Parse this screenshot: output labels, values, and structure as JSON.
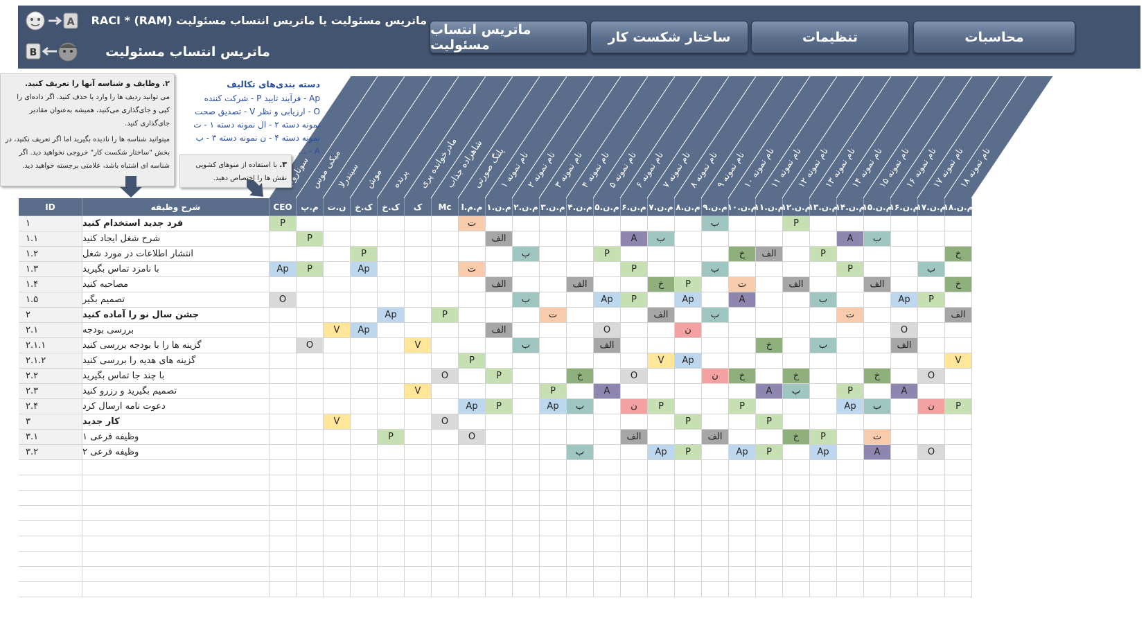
{
  "header": {
    "title_main": "ماتریس مسئولیت یا ماتریس انتساب مسئولیت RACI * (RAM)",
    "title_sub": "ماتریس انتساب مسئولیت",
    "icon_a_label": "A",
    "icon_b_label": "B",
    "nav": [
      {
        "label": "محاسبات"
      },
      {
        "label": "تنظیمات"
      },
      {
        "label": "ساختار شکست کار"
      },
      {
        "label": "ماتریس انتساب مسئولیت"
      }
    ]
  },
  "note1": {
    "heading_num": "۲.",
    "heading": "وظایف و شناسه آنها را تعریف کنید.",
    "p1": "می توانید ردیف ها را وارد یا حذف کنید. اگر داده‌ای را کپی و جای‌گذاری می‌کنید، همیشه به‌عنوان مقادیر جای‌گذاری کنید.",
    "p2": "میتوانید شناسه ها را نادیده بگیرید اما اگر تعریف نکنید، در بخش \"ساختار شکست کار\" خروجی نخواهید دید. اگر شناسه ای اشتباه باشد، علامتی برجسته خواهید دید."
  },
  "note2": {
    "heading_num": "۳.",
    "text": "با استفاده از منوهای کشویی نقش ها را اختصاص دهید."
  },
  "legend": {
    "title": "دسته بندی‌های تکالیف",
    "rows": [
      "Ap - فرآیند تایید    P - شرکت کننده",
      "O - ارزیابی و نظر   V - تصدیق صحت",
      "نمونه دسته ۲ - ال  نمونه دسته ۱ - ت",
      "نمونه دسته ۴ - ن  نمونه دسته ۳ - ب",
      "A - ..."
    ]
  },
  "roles_full": [
    "سوناروپ",
    "میکی موس",
    "سیندرلا",
    "موش",
    "پرنده",
    "مادرخوانده پری",
    "شاهزاده جذاب",
    "پلنگ صورتی",
    "نام نمونه ۱",
    "نام نمونه ۲",
    "نام نمونه ۳",
    "نام نمونه ۴",
    "نام نمونه ۵",
    "نام نمونه ۶",
    "نام نمونه ۷",
    "نام نمونه ۸",
    "نام نمونه ۹",
    "نام نمونه ۱۰",
    "نام نمونه ۱۱",
    "نام نمونه ۱۲",
    "نام نمونه ۱۳",
    "نام نمونه ۱۴",
    "نام نمونه ۱۵",
    "نام نمونه ۱۶",
    "نام نمونه ۱۷",
    "نام نمونه ۱۸"
  ],
  "table": {
    "id_header": "ID",
    "task_header": "شرح وظیفه",
    "role_abbr": [
      "CEO",
      "م.پ",
      "ن.ت",
      "ک.خ",
      "ک.خ",
      "ک",
      "Mc",
      "م.م.ا",
      "م.ن.۱",
      "م.ن.۲",
      "م.ن.۳",
      "م.ن.۴",
      "م.ن.۵",
      "م.ن.۶",
      "م.ن.۷",
      "م.ن.۸",
      "م.ن.۹",
      "م.ن.۱۰",
      "م.ن.۱۱",
      "م.ن.۱۲",
      "م.ن.۱۳",
      "م.ن.۱۴",
      "م.ن.۱۵",
      "م.ن.۱۶",
      "م.ن.۱۷",
      "م.ن.۱۸"
    ],
    "rows": [
      {
        "id": "۱",
        "task": "فرد جدید استخدام کنید",
        "bold": true,
        "cells": {
          "0": "P",
          "7": "ت",
          "16": "ب",
          "19": "P"
        }
      },
      {
        "id": "۱.۱",
        "task": "شرح شغل ایجاد کنید",
        "bold": false,
        "cells": {
          "1": "P",
          "8": "الف",
          "13": "A",
          "14": "ب",
          "21": "A",
          "22": "ب"
        }
      },
      {
        "id": "۱.۲",
        "task": "انتشار اطلاعات در مورد شغل",
        "bold": false,
        "cells": {
          "3": "P",
          "9": "ب",
          "12": "P",
          "17": "خ",
          "18": "الف",
          "20": "P",
          "25": "خ"
        }
      },
      {
        "id": "۱.۳",
        "task": "با نامزد تماس بگیرید",
        "bold": false,
        "cells": {
          "0": "Ap",
          "1": "P",
          "3": "Ap",
          "7": "ت",
          "13": "P",
          "16": "ب",
          "21": "P",
          "24": "ب"
        }
      },
      {
        "id": "۱.۴",
        "task": "مصاحبه کنید",
        "bold": false,
        "cells": {
          "8": "الف",
          "11": "الف",
          "14": "خ",
          "15": "P",
          "17": "ت",
          "19": "الف",
          "22": "الف",
          "25": "خ"
        }
      },
      {
        "id": "۱.۵",
        "task": "تصمیم بگیر",
        "bold": false,
        "cells": {
          "0": "O",
          "9": "ب",
          "12": "Ap",
          "13": "P",
          "15": "Ap",
          "17": "A",
          "20": "ب",
          "23": "Ap",
          "24": "P"
        }
      },
      {
        "id": "۲",
        "task": "جشن سال نو را آماده کنید",
        "bold": true,
        "cells": {
          "4": "Ap",
          "6": "P",
          "10": "ت",
          "14": "الف",
          "16": "ب",
          "21": "ت",
          "25": "الف"
        }
      },
      {
        "id": "۲.۱",
        "task": "بررسی بودجه",
        "bold": false,
        "cells": {
          "2": "V",
          "3": "Ap",
          "8": "الف",
          "12": "O",
          "15": "ن",
          "23": "O"
        }
      },
      {
        "id": "۲.۱.۱",
        "task": "گزینه ها را با بودجه بررسی کنید",
        "bold": false,
        "cells": {
          "1": "O",
          "5": "V",
          "9": "ب",
          "12": "الف",
          "18": "خ",
          "20": "ب",
          "23": "الف"
        }
      },
      {
        "id": "۲.۱.۲",
        "task": "گزینه های هدیه را بررسی کنید",
        "bold": false,
        "cells": {
          "7": "P",
          "14": "V",
          "15": "Ap",
          "25": "V"
        }
      },
      {
        "id": "۲.۲",
        "task": "با چند جا تماس بگیرید",
        "bold": false,
        "cells": {
          "6": "O",
          "8": "P",
          "11": "خ",
          "13": "O",
          "16": "ن",
          "17": "خ",
          "19": "خ",
          "22": "خ",
          "24": "O"
        }
      },
      {
        "id": "۲.۳",
        "task": "تصمیم بگیرید و رزرو کنید",
        "bold": false,
        "cells": {
          "5": "V",
          "10": "P",
          "12": "A",
          "18": "A",
          "19": "ب",
          "21": "P",
          "23": "A"
        }
      },
      {
        "id": "۲.۴",
        "task": "دعوت نامه ارسال کرد",
        "bold": false,
        "cells": {
          "7": "Ap",
          "8": "P",
          "10": "Ap",
          "11": "ب",
          "13": "ن",
          "14": "P",
          "17": "P",
          "21": "Ap",
          "22": "ب",
          "24": "ن",
          "25": "P"
        }
      },
      {
        "id": "۳",
        "task": "کار جدید",
        "bold": true,
        "cells": {
          "2": "V",
          "6": "O",
          "15": "P",
          "18": "P"
        }
      },
      {
        "id": "۳.۱",
        "task": "وظیفه فرعی ۱",
        "bold": false,
        "cells": {
          "4": "P",
          "7": "O",
          "13": "الف",
          "16": "الف",
          "19": "خ",
          "20": "P",
          "22": "ت"
        }
      },
      {
        "id": "۳.۲",
        "task": "وظیفه فرعی ۲",
        "bold": false,
        "cells": {
          "11": "ب",
          "14": "Ap",
          "15": "P",
          "17": "Ap",
          "18": "P",
          "20": "Ap",
          "22": "A",
          "24": "O"
        }
      }
    ],
    "empty_rows": 9
  },
  "colors": {
    "header_bg": "#42546f",
    "table_header_bg": "#5a6d8a",
    "P": "#c6e0b4",
    "Ap": "#bdd7ee",
    "O": "#d9d9d9",
    "V": "#ffe699",
    "A": "#8e86ae",
    "ب": "#9fc5c0",
    "خ": "#8faf7d",
    "الف": "#a6a6a6",
    "ت": "#f8cbad",
    "ن": "#f4a1a1"
  }
}
